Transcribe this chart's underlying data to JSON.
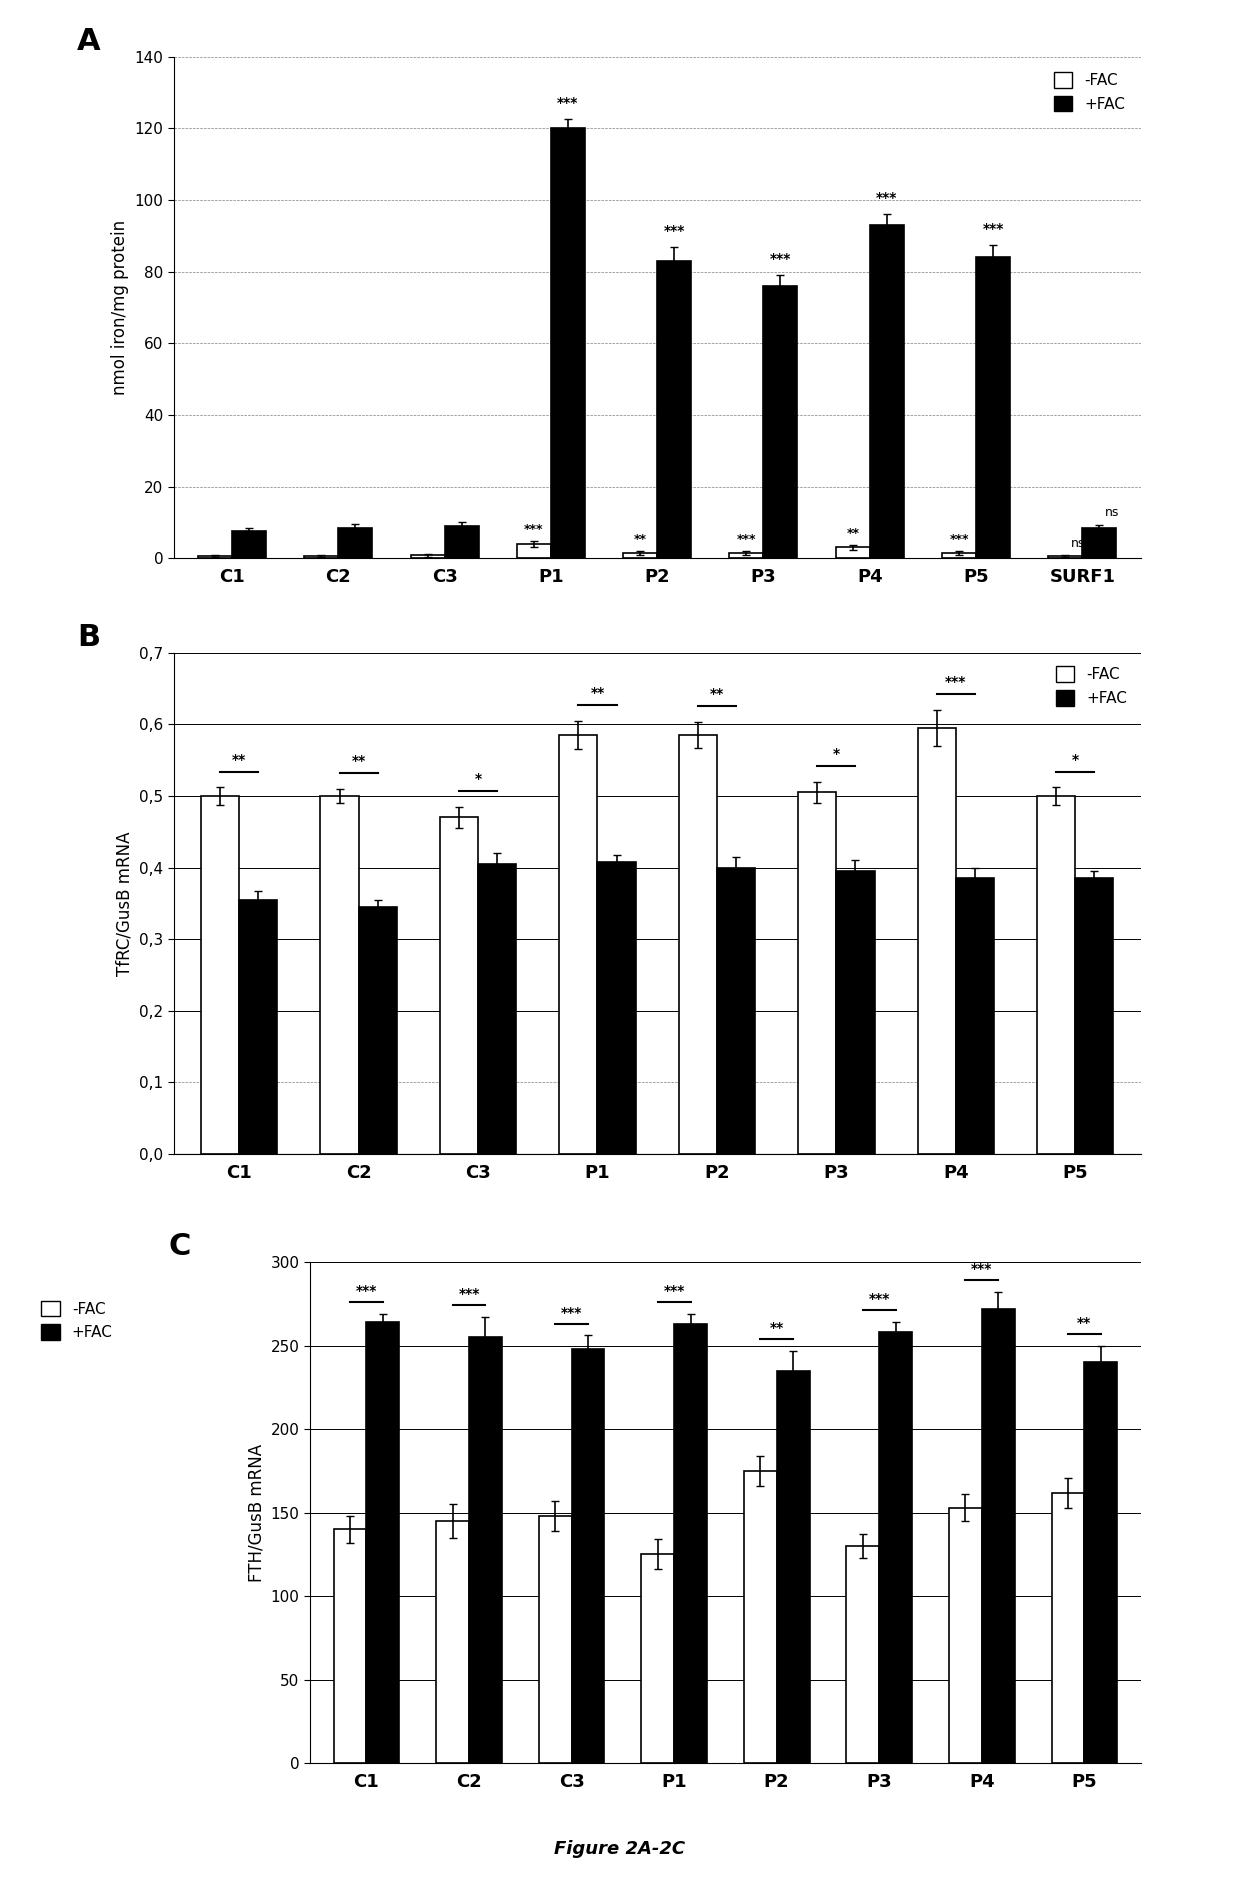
{
  "panel_A": {
    "categories": [
      "C1",
      "C2",
      "C3",
      "P1",
      "P2",
      "P3",
      "P4",
      "P5",
      "SURF1"
    ],
    "neg_fac": [
      0.5,
      0.5,
      0.8,
      4.0,
      1.5,
      1.5,
      3.0,
      1.5,
      0.5
    ],
    "pos_fac": [
      7.5,
      8.5,
      9.0,
      120.0,
      83.0,
      76.0,
      93.0,
      84.0,
      8.5
    ],
    "neg_fac_err": [
      0.3,
      0.3,
      0.4,
      0.8,
      0.5,
      0.5,
      0.7,
      0.5,
      0.3
    ],
    "pos_fac_err": [
      0.8,
      1.0,
      1.2,
      2.5,
      4.0,
      3.0,
      3.0,
      3.5,
      0.8
    ],
    "ylabel": "nmol iron/mg protein",
    "ylim": [
      0,
      140
    ],
    "yticks": [
      0,
      20,
      40,
      60,
      80,
      100,
      120,
      140
    ],
    "sig_above_pos": [
      "",
      "",
      "",
      "***",
      "***",
      "***",
      "***",
      "***",
      ""
    ],
    "sig_above_neg": [
      "",
      "",
      "",
      "***",
      "**",
      "***",
      "**",
      "***",
      ""
    ],
    "panel_label": "A"
  },
  "panel_B": {
    "categories": [
      "C1",
      "C2",
      "C3",
      "P1",
      "P2",
      "P3",
      "P4",
      "P5"
    ],
    "neg_fac": [
      0.5,
      0.5,
      0.47,
      0.585,
      0.585,
      0.505,
      0.595,
      0.5
    ],
    "pos_fac": [
      0.355,
      0.345,
      0.405,
      0.408,
      0.4,
      0.395,
      0.385,
      0.385
    ],
    "neg_fac_err": [
      0.012,
      0.01,
      0.015,
      0.02,
      0.018,
      0.015,
      0.025,
      0.012
    ],
    "pos_fac_err": [
      0.012,
      0.01,
      0.015,
      0.01,
      0.015,
      0.015,
      0.015,
      0.01
    ],
    "ylabel": "TfRC/GusB mRNA",
    "ylim": [
      0.0,
      0.7
    ],
    "yticks": [
      0.0,
      0.1,
      0.2,
      0.3,
      0.4,
      0.5,
      0.6,
      0.7
    ],
    "sig_between": [
      "**",
      "**",
      "*",
      "**",
      "**",
      "*",
      "***",
      "*"
    ],
    "panel_label": "B"
  },
  "panel_C": {
    "categories": [
      "C1",
      "C2",
      "C3",
      "P1",
      "P2",
      "P3",
      "P4",
      "P5"
    ],
    "neg_fac": [
      140.0,
      145.0,
      148.0,
      125.0,
      175.0,
      130.0,
      153.0,
      162.0
    ],
    "pos_fac": [
      264.0,
      255.0,
      248.0,
      263.0,
      235.0,
      258.0,
      272.0,
      240.0
    ],
    "neg_fac_err": [
      8.0,
      10.0,
      9.0,
      9.0,
      9.0,
      7.0,
      8.0,
      9.0
    ],
    "pos_fac_err": [
      5.0,
      12.0,
      8.0,
      6.0,
      12.0,
      6.0,
      10.0,
      10.0
    ],
    "ylabel": "FTH/GusB mRNA",
    "ylim": [
      0,
      300
    ],
    "yticks": [
      0,
      50,
      100,
      150,
      200,
      250,
      300
    ],
    "sig_between": [
      "***",
      "***",
      "***",
      "***",
      "**",
      "***",
      "***",
      "**"
    ],
    "panel_label": "C"
  },
  "bar_width": 0.32,
  "neg_color": "white",
  "pos_color": "black",
  "neg_edge": "black",
  "pos_edge": "black",
  "figure_caption": "Figure 2A-2C"
}
